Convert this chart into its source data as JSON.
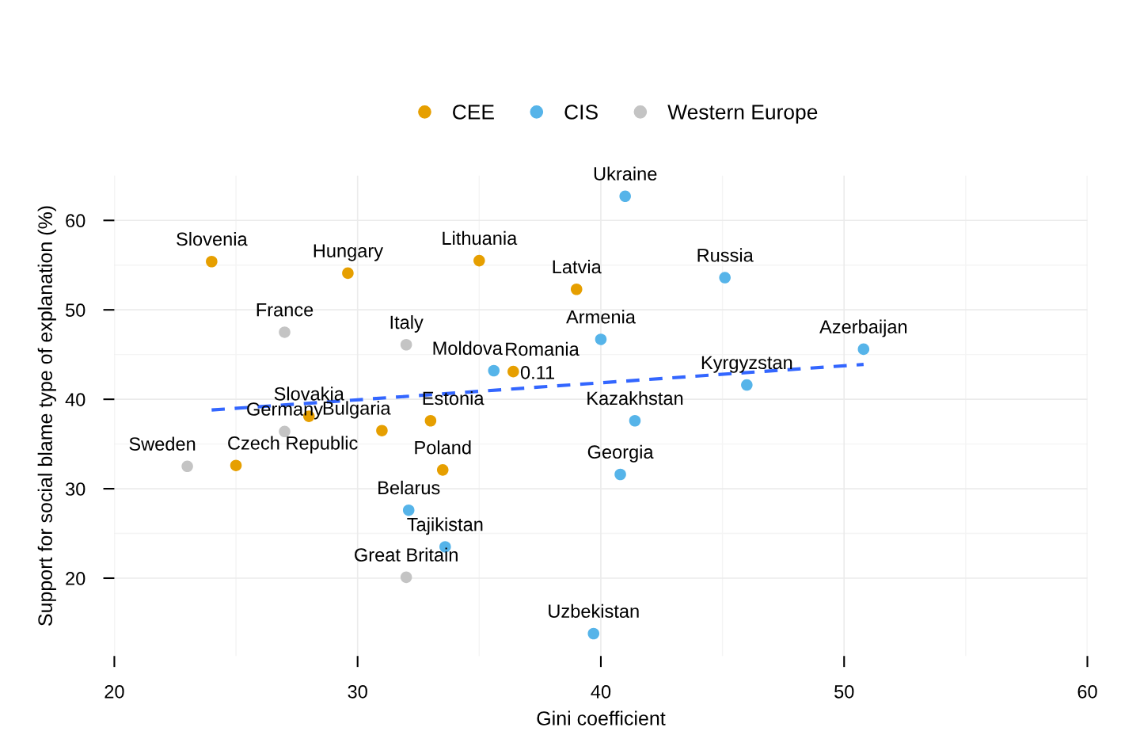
{
  "chart_data": {
    "type": "scatter",
    "xlabel": "Gini coefficient",
    "ylabel": "Support for social blame type of explanation (%)",
    "xlim": [
      20,
      60
    ],
    "xticks": [
      20,
      30,
      40,
      50,
      60
    ],
    "ylim": [
      11.3,
      65
    ],
    "yticks": [
      20,
      30,
      40,
      50,
      60
    ],
    "grid": true,
    "legend": "top",
    "marker": "circle",
    "series": [
      {
        "name": "CEE",
        "color": "#e69f00",
        "x": [
          24.0,
          29.6,
          35.0,
          39.0,
          36.4,
          28.0,
          31.0,
          33.0,
          33.5,
          25.0
        ],
        "values": [
          55.4,
          54.1,
          55.5,
          52.3,
          43.1,
          38.1,
          36.5,
          37.6,
          32.1,
          32.6
        ]
      },
      {
        "name": "CIS",
        "color": "#56b4e9",
        "x": [
          41.0,
          45.1,
          50.8,
          40.0,
          35.6,
          46.0,
          41.4,
          40.8,
          32.1,
          33.6,
          39.7
        ],
        "values": [
          62.7,
          53.6,
          45.6,
          46.7,
          43.2,
          41.6,
          37.6,
          31.6,
          27.6,
          23.5,
          13.8
        ]
      },
      {
        "name": "Western Europe",
        "color": "#c4c4c4",
        "x": [
          27.0,
          32.0,
          27.0,
          23.0,
          32.0
        ],
        "values": [
          47.5,
          46.1,
          36.4,
          32.5,
          20.1
        ]
      },
      {
        "type": "line",
        "color": "#3366ff",
        "line_style": "dashed",
        "marker": "none",
        "x": [
          24.0,
          50.8
        ],
        "values": [
          38.8,
          43.9
        ]
      }
    ],
    "annotations": [
      {
        "text": "Slovenia",
        "x": 24.0,
        "y": 55.4
      },
      {
        "text": "Hungary",
        "x": 29.6,
        "y": 54.1
      },
      {
        "text": "Lithuania",
        "x": 35.0,
        "y": 55.5
      },
      {
        "text": "Latvia",
        "x": 39.0,
        "y": 52.3
      },
      {
        "text": "Romania",
        "x": 36.4,
        "y": 43.1
      },
      {
        "text": "Slovakia",
        "x": 28.0,
        "y": 38.1
      },
      {
        "text": "Bulgaria",
        "x": 31.0,
        "y": 36.5
      },
      {
        "text": "Estonia",
        "x": 33.0,
        "y": 37.6
      },
      {
        "text": "Poland",
        "x": 33.5,
        "y": 32.1
      },
      {
        "text": "Czech Republic",
        "x": 25.0,
        "y": 32.6
      },
      {
        "text": "Ukraine",
        "x": 41.0,
        "y": 62.7
      },
      {
        "text": "Russia",
        "x": 45.1,
        "y": 53.6
      },
      {
        "text": "Azerbaijan",
        "x": 50.8,
        "y": 45.6
      },
      {
        "text": "Armenia",
        "x": 40.0,
        "y": 46.7
      },
      {
        "text": "Moldova",
        "x": 35.6,
        "y": 43.2
      },
      {
        "text": "Kyrgyzstan",
        "x": 46.0,
        "y": 41.6
      },
      {
        "text": "Kazakhstan",
        "x": 41.4,
        "y": 37.6
      },
      {
        "text": "Georgia",
        "x": 40.8,
        "y": 31.6
      },
      {
        "text": "Belarus",
        "x": 32.1,
        "y": 27.6
      },
      {
        "text": "Tajikistan",
        "x": 33.6,
        "y": 23.5
      },
      {
        "text": "Uzbekistan",
        "x": 39.7,
        "y": 13.8
      },
      {
        "text": "France",
        "x": 27.0,
        "y": 47.5
      },
      {
        "text": "Italy",
        "x": 32.0,
        "y": 46.1
      },
      {
        "text": "Germany",
        "x": 27.0,
        "y": 36.4
      },
      {
        "text": "Sweden",
        "x": 23.0,
        "y": 32.5
      },
      {
        "text": "Great Britain",
        "x": 32.0,
        "y": 20.1
      },
      "0.11"
    ]
  }
}
